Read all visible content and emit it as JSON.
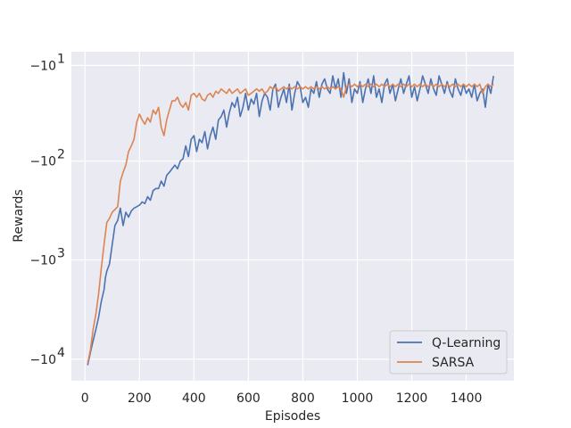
{
  "chart_data": {
    "type": "line",
    "title": "",
    "xlabel": "Episodes",
    "ylabel": "Rewards",
    "y_scale": "symlog",
    "xlim": [
      -50,
      1575
    ],
    "ylim": [
      -16500,
      -7
    ],
    "xticks": [
      {
        "value": 0,
        "label": "0"
      },
      {
        "value": 200,
        "label": "200"
      },
      {
        "value": 400,
        "label": "400"
      },
      {
        "value": 600,
        "label": "600"
      },
      {
        "value": 800,
        "label": "800"
      },
      {
        "value": 1000,
        "label": "1000"
      },
      {
        "value": 1200,
        "label": "1200"
      },
      {
        "value": 1400,
        "label": "1400"
      }
    ],
    "yticks": [
      {
        "value": -10,
        "base": "−10",
        "exp": "1"
      },
      {
        "value": -100,
        "base": "−10",
        "exp": "2"
      },
      {
        "value": -1000,
        "base": "−10",
        "exp": "3"
      },
      {
        "value": -10000,
        "base": "−10",
        "exp": "4"
      }
    ],
    "grid": true,
    "legend_position": "bottom-right",
    "series": [
      {
        "name": "Q-Learning",
        "color": "#4c72b0",
        "points": [
          [
            10,
            -11500
          ],
          [
            20,
            -8500
          ],
          [
            30,
            -6500
          ],
          [
            40,
            -5000
          ],
          [
            50,
            -3800
          ],
          [
            60,
            -2600
          ],
          [
            70,
            -2000
          ],
          [
            75,
            -1500
          ],
          [
            80,
            -1300
          ],
          [
            90,
            -1100
          ],
          [
            100,
            -700
          ],
          [
            110,
            -450
          ],
          [
            120,
            -400
          ],
          [
            130,
            -300
          ],
          [
            140,
            -450
          ],
          [
            150,
            -330
          ],
          [
            160,
            -370
          ],
          [
            170,
            -320
          ],
          [
            180,
            -300
          ],
          [
            190,
            -290
          ],
          [
            200,
            -280
          ],
          [
            210,
            -260
          ],
          [
            220,
            -270
          ],
          [
            230,
            -230
          ],
          [
            240,
            -250
          ],
          [
            250,
            -200
          ],
          [
            260,
            -190
          ],
          [
            270,
            -190
          ],
          [
            280,
            -160
          ],
          [
            290,
            -180
          ],
          [
            300,
            -140
          ],
          [
            310,
            -130
          ],
          [
            320,
            -120
          ],
          [
            330,
            -110
          ],
          [
            340,
            -120
          ],
          [
            350,
            -100
          ],
          [
            360,
            -95
          ],
          [
            370,
            -70
          ],
          [
            380,
            -90
          ],
          [
            390,
            -60
          ],
          [
            400,
            -55
          ],
          [
            410,
            -80
          ],
          [
            420,
            -60
          ],
          [
            430,
            -65
          ],
          [
            440,
            -50
          ],
          [
            450,
            -75
          ],
          [
            460,
            -55
          ],
          [
            470,
            -45
          ],
          [
            480,
            -60
          ],
          [
            490,
            -38
          ],
          [
            500,
            -35
          ],
          [
            510,
            -30
          ],
          [
            520,
            -45
          ],
          [
            530,
            -32
          ],
          [
            540,
            -25
          ],
          [
            550,
            -28
          ],
          [
            560,
            -22
          ],
          [
            570,
            -35
          ],
          [
            580,
            -28
          ],
          [
            590,
            -20
          ],
          [
            600,
            -30
          ],
          [
            610,
            -23
          ],
          [
            620,
            -26
          ],
          [
            630,
            -20
          ],
          [
            640,
            -35
          ],
          [
            650,
            -24
          ],
          [
            660,
            -20
          ],
          [
            670,
            -22
          ],
          [
            680,
            -30
          ],
          [
            690,
            -18
          ],
          [
            700,
            -16
          ],
          [
            710,
            -28
          ],
          [
            720,
            -22
          ],
          [
            730,
            -18
          ],
          [
            740,
            -25
          ],
          [
            750,
            -16
          ],
          [
            760,
            -30
          ],
          [
            770,
            -20
          ],
          [
            780,
            -15
          ],
          [
            790,
            -17
          ],
          [
            800,
            -25
          ],
          [
            810,
            -22
          ],
          [
            820,
            -28
          ],
          [
            830,
            -18
          ],
          [
            840,
            -20
          ],
          [
            850,
            -15
          ],
          [
            860,
            -22
          ],
          [
            870,
            -16
          ],
          [
            880,
            -14
          ],
          [
            890,
            -18
          ],
          [
            900,
            -20
          ],
          [
            910,
            -13
          ],
          [
            920,
            -18
          ],
          [
            930,
            -14
          ],
          [
            940,
            -22
          ],
          [
            950,
            -12
          ],
          [
            960,
            -20
          ],
          [
            970,
            -14
          ],
          [
            980,
            -25
          ],
          [
            990,
            -18
          ],
          [
            1000,
            -20
          ],
          [
            1010,
            -15
          ],
          [
            1020,
            -25
          ],
          [
            1030,
            -18
          ],
          [
            1040,
            -14
          ],
          [
            1050,
            -20
          ],
          [
            1060,
            -13
          ],
          [
            1070,
            -22
          ],
          [
            1080,
            -18
          ],
          [
            1090,
            -25
          ],
          [
            1100,
            -16
          ],
          [
            1110,
            -14
          ],
          [
            1120,
            -20
          ],
          [
            1130,
            -16
          ],
          [
            1140,
            -24
          ],
          [
            1150,
            -18
          ],
          [
            1160,
            -14
          ],
          [
            1170,
            -20
          ],
          [
            1180,
            -16
          ],
          [
            1190,
            -13
          ],
          [
            1200,
            -22
          ],
          [
            1210,
            -17
          ],
          [
            1220,
            -24
          ],
          [
            1230,
            -18
          ],
          [
            1240,
            -13
          ],
          [
            1250,
            -16
          ],
          [
            1260,
            -20
          ],
          [
            1270,
            -14
          ],
          [
            1280,
            -18
          ],
          [
            1290,
            -21
          ],
          [
            1300,
            -13
          ],
          [
            1310,
            -16
          ],
          [
            1320,
            -20
          ],
          [
            1330,
            -15
          ],
          [
            1340,
            -19
          ],
          [
            1350,
            -22
          ],
          [
            1360,
            -14
          ],
          [
            1370,
            -18
          ],
          [
            1380,
            -21
          ],
          [
            1390,
            -16
          ],
          [
            1400,
            -20
          ],
          [
            1410,
            -18
          ],
          [
            1420,
            -22
          ],
          [
            1430,
            -16
          ],
          [
            1440,
            -24
          ],
          [
            1450,
            -20
          ],
          [
            1460,
            -18
          ],
          [
            1470,
            -28
          ],
          [
            1480,
            -16
          ],
          [
            1490,
            -20
          ],
          [
            1500,
            -13
          ]
        ]
      },
      {
        "name": "SARSA",
        "color": "#dd8452",
        "points": [
          [
            10,
            -11000
          ],
          [
            20,
            -8000
          ],
          [
            30,
            -5000
          ],
          [
            40,
            -3500
          ],
          [
            50,
            -2200
          ],
          [
            60,
            -1200
          ],
          [
            70,
            -700
          ],
          [
            80,
            -420
          ],
          [
            90,
            -380
          ],
          [
            100,
            -330
          ],
          [
            110,
            -310
          ],
          [
            120,
            -290
          ],
          [
            130,
            -160
          ],
          [
            140,
            -130
          ],
          [
            150,
            -110
          ],
          [
            160,
            -80
          ],
          [
            170,
            -70
          ],
          [
            180,
            -60
          ],
          [
            190,
            -40
          ],
          [
            200,
            -33
          ],
          [
            210,
            -38
          ],
          [
            220,
            -42
          ],
          [
            230,
            -36
          ],
          [
            240,
            -40
          ],
          [
            250,
            -30
          ],
          [
            260,
            -33
          ],
          [
            270,
            -28
          ],
          [
            280,
            -45
          ],
          [
            290,
            -55
          ],
          [
            300,
            -38
          ],
          [
            310,
            -30
          ],
          [
            320,
            -24
          ],
          [
            330,
            -24
          ],
          [
            340,
            -22
          ],
          [
            350,
            -26
          ],
          [
            360,
            -28
          ],
          [
            370,
            -25
          ],
          [
            380,
            -30
          ],
          [
            390,
            -21
          ],
          [
            400,
            -20
          ],
          [
            410,
            -22
          ],
          [
            420,
            -20
          ],
          [
            430,
            -23
          ],
          [
            440,
            -24
          ],
          [
            450,
            -21
          ],
          [
            460,
            -20
          ],
          [
            470,
            -22
          ],
          [
            480,
            -19
          ],
          [
            490,
            -20
          ],
          [
            500,
            -18
          ],
          [
            510,
            -19
          ],
          [
            520,
            -20
          ],
          [
            530,
            -18
          ],
          [
            540,
            -20
          ],
          [
            550,
            -19
          ],
          [
            560,
            -18
          ],
          [
            570,
            -20
          ],
          [
            580,
            -19
          ],
          [
            590,
            -18
          ],
          [
            600,
            -21
          ],
          [
            610,
            -20
          ],
          [
            620,
            -19
          ],
          [
            630,
            -18
          ],
          [
            640,
            -19
          ],
          [
            650,
            -18
          ],
          [
            660,
            -20
          ],
          [
            670,
            -19
          ],
          [
            680,
            -17
          ],
          [
            690,
            -18
          ],
          [
            700,
            -17
          ],
          [
            710,
            -19
          ],
          [
            720,
            -18
          ],
          [
            730,
            -17
          ],
          [
            740,
            -18
          ],
          [
            750,
            -17
          ],
          [
            760,
            -18
          ],
          [
            770,
            -17
          ],
          [
            780,
            -18
          ],
          [
            790,
            -17
          ],
          [
            800,
            -18
          ],
          [
            810,
            -17
          ],
          [
            820,
            -18
          ],
          [
            830,
            -17
          ],
          [
            840,
            -18
          ],
          [
            850,
            -17
          ],
          [
            860,
            -18
          ],
          [
            870,
            -17
          ],
          [
            880,
            -18
          ],
          [
            890,
            -17
          ],
          [
            900,
            -18
          ],
          [
            910,
            -17
          ],
          [
            920,
            -18
          ],
          [
            930,
            -17
          ],
          [
            940,
            -18
          ],
          [
            950,
            -22
          ],
          [
            960,
            -17
          ],
          [
            970,
            -16
          ],
          [
            980,
            -17
          ],
          [
            990,
            -16
          ],
          [
            1000,
            -17
          ],
          [
            1010,
            -16
          ],
          [
            1020,
            -17
          ],
          [
            1030,
            -16
          ],
          [
            1040,
            -17
          ],
          [
            1050,
            -16
          ],
          [
            1060,
            -17
          ],
          [
            1070,
            -16
          ],
          [
            1080,
            -17
          ],
          [
            1090,
            -16
          ],
          [
            1100,
            -17
          ],
          [
            1110,
            -16
          ],
          [
            1120,
            -17
          ],
          [
            1130,
            -16
          ],
          [
            1140,
            -17
          ],
          [
            1150,
            -16
          ],
          [
            1160,
            -17
          ],
          [
            1170,
            -16
          ],
          [
            1180,
            -17
          ],
          [
            1190,
            -16
          ],
          [
            1200,
            -17
          ],
          [
            1210,
            -16
          ],
          [
            1220,
            -17
          ],
          [
            1230,
            -16
          ],
          [
            1240,
            -17
          ],
          [
            1250,
            -16
          ],
          [
            1260,
            -17
          ],
          [
            1270,
            -16
          ],
          [
            1280,
            -17
          ],
          [
            1290,
            -16
          ],
          [
            1300,
            -17
          ],
          [
            1310,
            -16
          ],
          [
            1320,
            -17
          ],
          [
            1330,
            -16
          ],
          [
            1340,
            -17
          ],
          [
            1350,
            -16
          ],
          [
            1360,
            -17
          ],
          [
            1370,
            -16
          ],
          [
            1380,
            -17
          ],
          [
            1390,
            -16
          ],
          [
            1400,
            -17
          ],
          [
            1410,
            -16
          ],
          [
            1420,
            -17
          ],
          [
            1430,
            -16
          ],
          [
            1440,
            -17
          ],
          [
            1450,
            -16
          ],
          [
            1460,
            -20
          ],
          [
            1470,
            -17
          ],
          [
            1480,
            -16
          ],
          [
            1490,
            -17
          ],
          [
            1500,
            -16
          ]
        ]
      }
    ]
  }
}
